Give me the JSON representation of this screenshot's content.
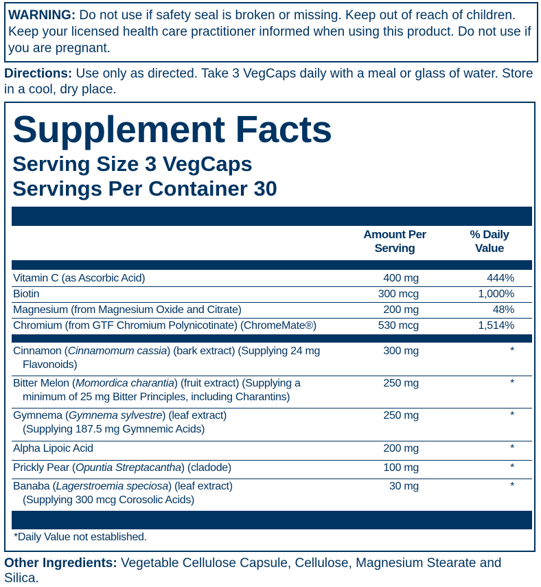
{
  "warning": {
    "label": "WARNING:",
    "text": " Do not use if safety seal is broken or missing. Keep out of reach of children. Keep your licensed health care practitioner informed when using this product. Do not use if you are pregnant."
  },
  "directions": {
    "label": "Directions:",
    "text": " Use only as directed. Take 3 VegCaps daily with a meal or glass of water. Store in a cool, dry place."
  },
  "facts": {
    "title": "Supplement Facts",
    "serving_size": "Serving Size 3 VegCaps",
    "servings_per_container": "Servings Per Container 30",
    "col_amount": "Amount Per Serving",
    "col_dv": "% Daily Value",
    "rows": [
      {
        "name": "Vitamin C (as Ascorbic Acid)",
        "amount": "400 mg",
        "dv": "444%"
      },
      {
        "name": "Biotin",
        "amount": "300 mcg",
        "dv": "1,000%"
      },
      {
        "name": "Magnesium (from Magnesium Oxide and Citrate)",
        "amount": "200 mg",
        "dv": "48%"
      },
      {
        "name": "Chromium (from GTF Chromium Polynicotinate) (ChromeMate®)",
        "amount": "530 mcg",
        "dv": "1,514%"
      },
      {
        "name": "Cinnamon (",
        "italic": "Cinnamomum cassia",
        "rest": ") (bark extract) (Supplying 24 mg",
        "line2": "Flavonoids)",
        "amount": "300 mg",
        "dv": "*"
      },
      {
        "name": "Bitter Melon (",
        "italic": "Momordica charantia",
        "rest": ") (fruit extract) (Supplying a",
        "line2": "minimum of 25 mg Bitter Principles, including Charantins)",
        "amount": "250 mg",
        "dv": "*"
      },
      {
        "name": "Gymnema (",
        "italic": "Gymnema sylvestre",
        "rest": ") (leaf extract)",
        "line2": "(Supplying 187.5 mg Gymnemic Acids)",
        "amount": "250 mg",
        "dv": "*"
      },
      {
        "name": "Alpha Lipoic Acid",
        "amount": "200 mg",
        "dv": "*"
      },
      {
        "name": "Prickly Pear (",
        "italic": "Opuntia Streptacantha",
        "rest": ") (cladode)",
        "amount": "100 mg",
        "dv": "*"
      },
      {
        "name": "Banaba (",
        "italic": "Lagerstroemia speciosa",
        "rest": ") (leaf extract)",
        "line2": "(Supplying 300 mcg Corosolic Acids)",
        "amount": "30 mg",
        "dv": "*"
      }
    ],
    "footnote": "*Daily Value not established."
  },
  "other": {
    "label": "Other Ingredients:",
    "text": " Vegetable Cellulose Capsule, Cellulose, Magnesium Stearate and Silica."
  },
  "colors": {
    "primary": "#003462"
  }
}
